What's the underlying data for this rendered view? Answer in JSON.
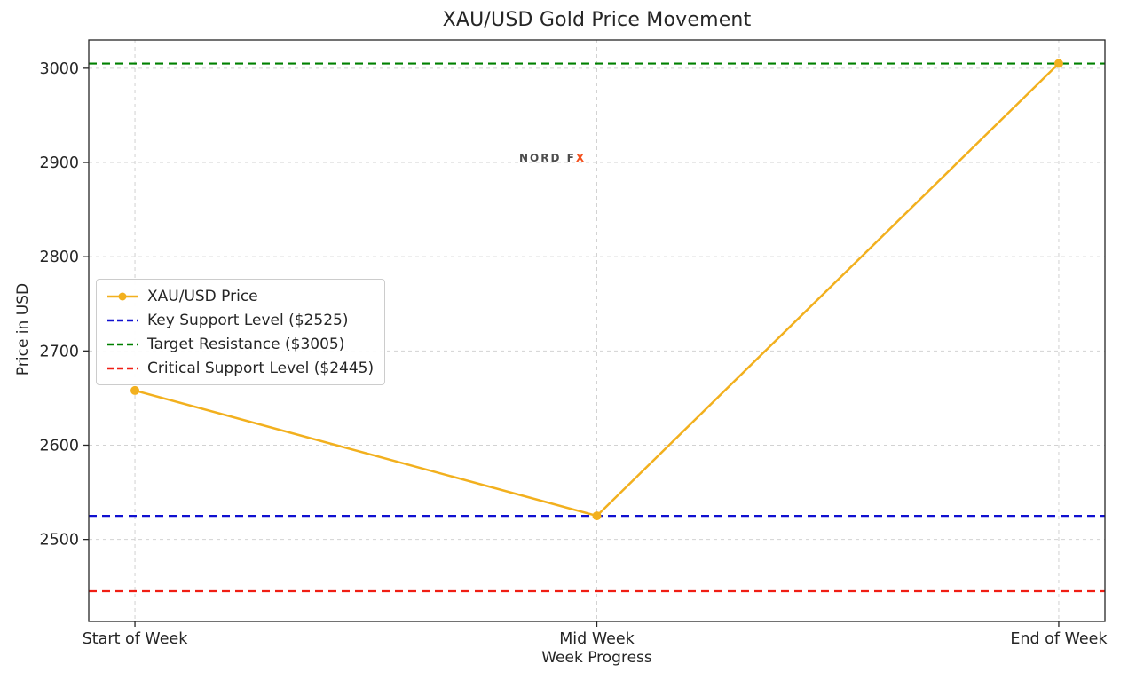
{
  "title": "XAU/USD Gold Price Movement",
  "watermark": {
    "text_main": "NORD F",
    "text_x": "X",
    "main_color": "#4d4d4d",
    "x_color": "#f4511e"
  },
  "chart_data": {
    "type": "line",
    "title": "XAU/USD Gold Price Movement",
    "xlabel": "Week Progress",
    "ylabel": "Price in USD",
    "categories": [
      "Start of Week",
      "Mid Week",
      "End of Week"
    ],
    "series": [
      {
        "name": "XAU/USD Price",
        "values": [
          2658,
          2525,
          3005
        ],
        "color": "#f2b01e",
        "marker": "circle",
        "style": "solid"
      }
    ],
    "hlines": [
      {
        "label": "Key Support Level ($2525)",
        "value": 2525,
        "color": "#1010d0",
        "style": "dashed"
      },
      {
        "label": "Target Resistance ($3005)",
        "value": 3005,
        "color": "#008000",
        "style": "dashed"
      },
      {
        "label": "Critical Support Level ($2445)",
        "value": 2445,
        "color": "#f01e14",
        "style": "dashed"
      }
    ],
    "yticks": [
      2500,
      2600,
      2700,
      2800,
      2900,
      3000
    ],
    "ylim": [
      2413,
      3030
    ],
    "xlim": [
      -0.1,
      2.1
    ],
    "grid": true,
    "grid_style": "dashed",
    "legend_position": "center-left"
  }
}
